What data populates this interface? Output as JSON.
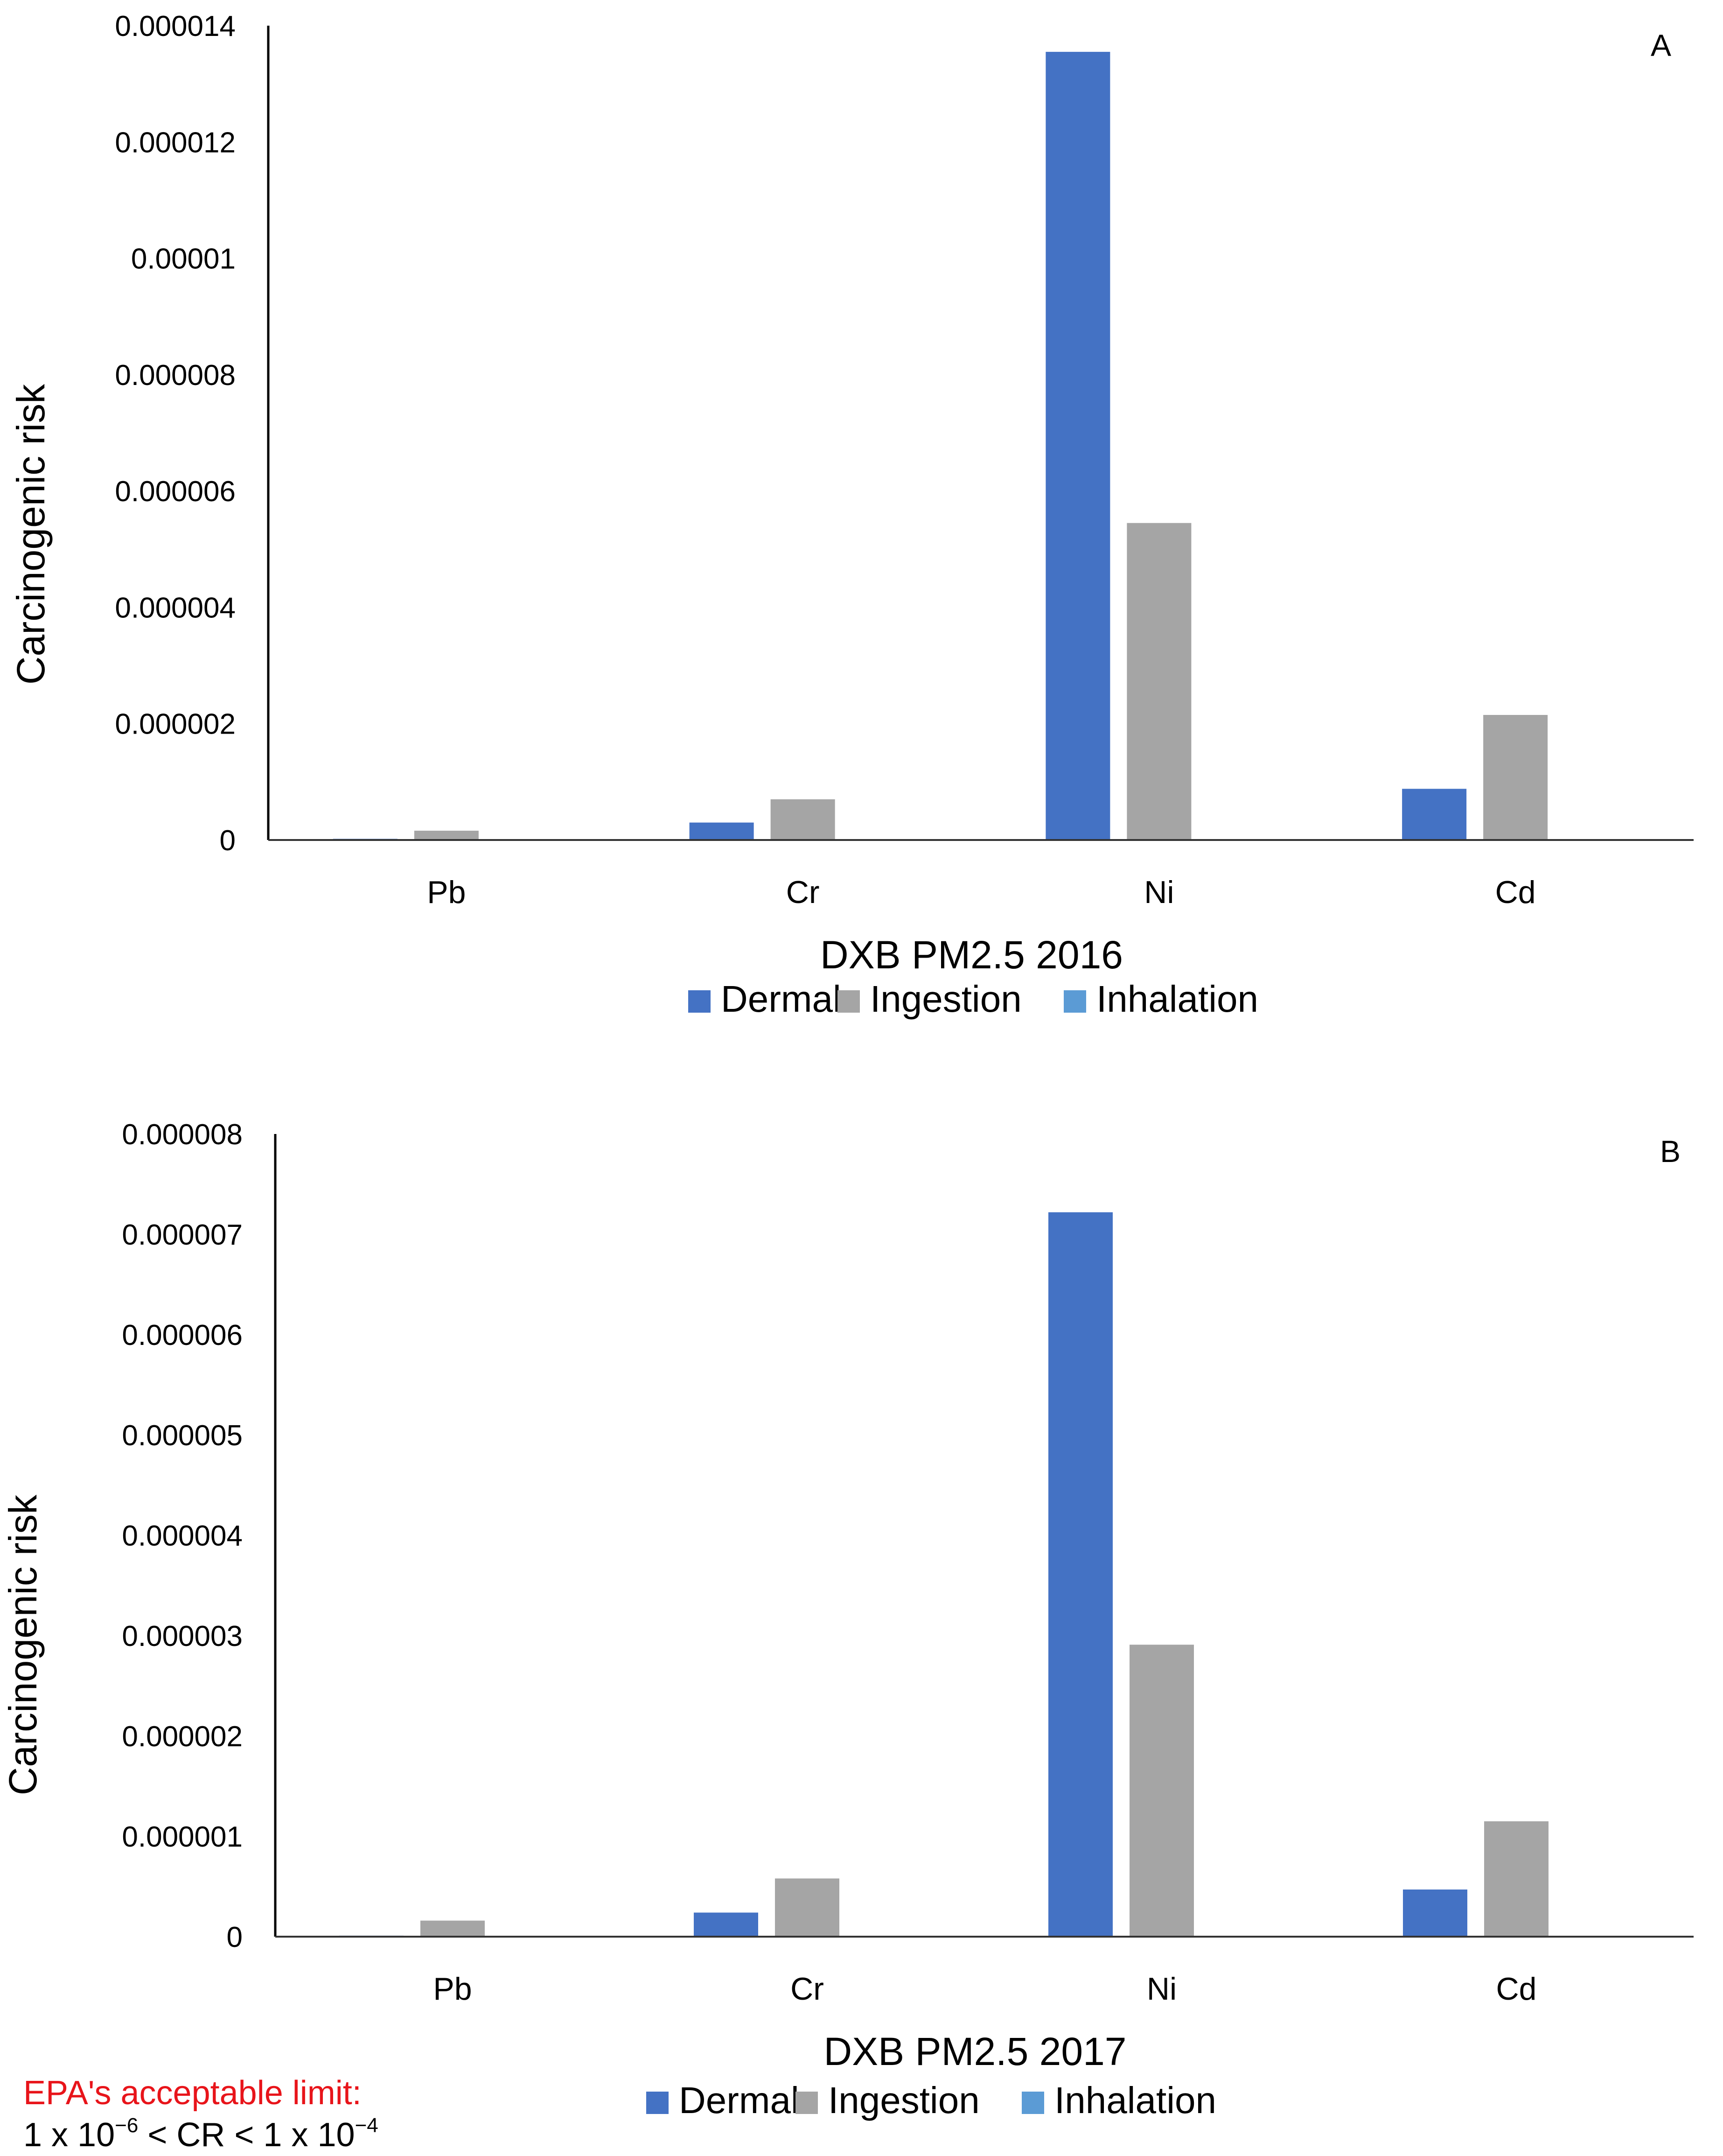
{
  "chart_data": [
    {
      "type": "bar",
      "panel_label": "A",
      "title": "",
      "xlabel": "DXB PM2.5 2016",
      "ylabel": "Carcinogenic risk",
      "categories": [
        "Pb",
        "Cr",
        "Ni",
        "Cd"
      ],
      "ylim": [
        0,
        1.4e-05
      ],
      "yticks": [
        "0",
        "0.000002",
        "0.000004",
        "0.000006",
        "0.000008",
        "0.00001",
        "0.000012",
        "0.000014"
      ],
      "ytick_values": [
        0,
        2e-06,
        4e-06,
        6e-06,
        8e-06,
        1e-05,
        1.2e-05,
        1.4e-05
      ],
      "grid": false,
      "legend_position": "bottom",
      "series": [
        {
          "name": "Dermal",
          "color": "#4472C4",
          "values": [
            2e-08,
            3e-07,
            1.355e-05,
            8.8e-07
          ]
        },
        {
          "name": "Ingestion",
          "color": "#A5A5A5",
          "values": [
            1.6e-07,
            7e-07,
            5.45e-06,
            2.15e-06
          ]
        },
        {
          "name": "Inhalation",
          "color": "#5B9BD5",
          "values": [
            2e-09,
            2e-09,
            3e-09,
            2e-09
          ]
        }
      ]
    },
    {
      "type": "bar",
      "panel_label": "B",
      "title": "",
      "xlabel": "DXB PM2.5 2017",
      "ylabel": "Carcinogenic risk",
      "categories": [
        "Pb",
        "Cr",
        "Ni",
        "Cd"
      ],
      "ylim": [
        0,
        8e-06
      ],
      "yticks": [
        "0",
        "0.000001",
        "0.000002",
        "0.000003",
        "0.000004",
        "0.000005",
        "0.000006",
        "0.000007",
        "0.000008"
      ],
      "ytick_values": [
        0,
        1e-06,
        2e-06,
        3e-06,
        4e-06,
        5e-06,
        6e-06,
        7e-06,
        8e-06
      ],
      "grid": false,
      "legend_position": "bottom",
      "series": [
        {
          "name": "Dermal",
          "color": "#4472C4",
          "values": [
            1e-08,
            2.4e-07,
            7.22e-06,
            4.7e-07
          ]
        },
        {
          "name": "Ingestion",
          "color": "#A5A5A5",
          "values": [
            1.6e-07,
            5.8e-07,
            2.91e-06,
            1.15e-06
          ]
        },
        {
          "name": "Inhalation",
          "color": "#5B9BD5",
          "values": [
            2e-09,
            2e-09,
            3e-09,
            2e-09
          ]
        }
      ]
    }
  ],
  "note": {
    "title": "EPA's acceptable limit:",
    "range_parts": {
      "a": "1 x 10",
      "exp1": "−6",
      "b": " < CR < 1 x 10",
      "exp2": "−4"
    }
  }
}
